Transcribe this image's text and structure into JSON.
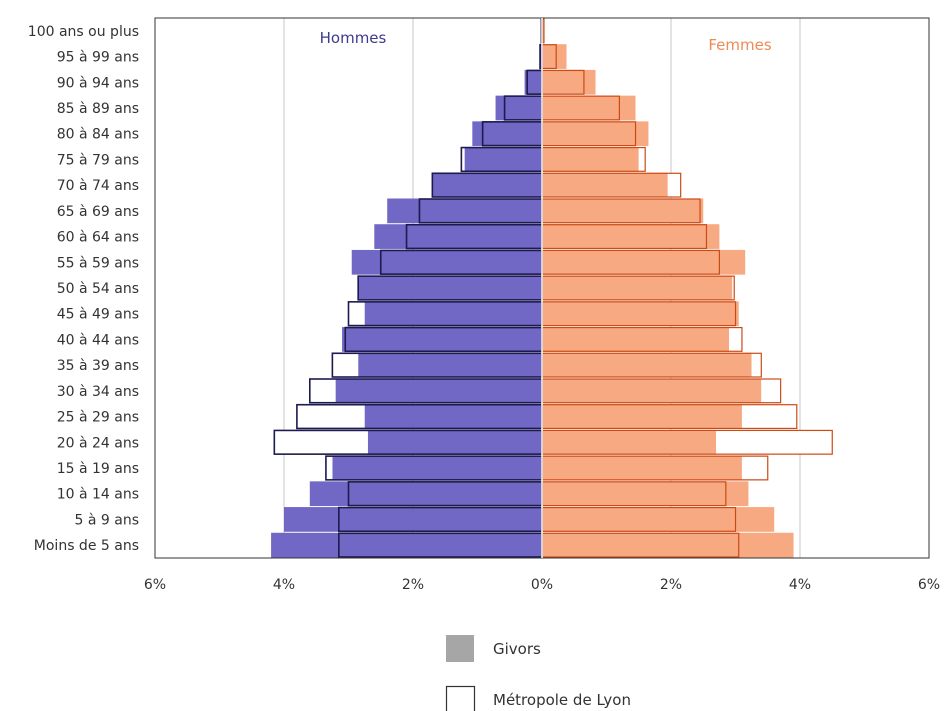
{
  "chart_data": {
    "type": "bar",
    "orientation": "population-pyramid",
    "categories": [
      "Moins de 5 ans",
      "5 à 9 ans",
      "10 à 14 ans",
      "15 à 19 ans",
      "20 à 24 ans",
      "25 à 29 ans",
      "30 à 34 ans",
      "35 à 39 ans",
      "40 à 44 ans",
      "45 à 49 ans",
      "50 à 54 ans",
      "55 à 59 ans",
      "60 à 64 ans",
      "65 à 69 ans",
      "70 à 74 ans",
      "75 à 79 ans",
      "80 à 84 ans",
      "85 à 89 ans",
      "90 à 94 ans",
      "95 à 99 ans",
      "100 ans ou plus"
    ],
    "side_labels": {
      "left": "Hommes",
      "right": "Femmes"
    },
    "xlim": [
      -6,
      6
    ],
    "x_ticks": [
      -6,
      -4,
      -2,
      0,
      2,
      4,
      6
    ],
    "x_tick_labels": [
      "6%",
      "4%",
      "2%",
      "0%",
      "2%",
      "4%",
      "6%"
    ],
    "grid": true,
    "legend_position": "bottom",
    "series": [
      {
        "name": "Givors",
        "style": "filled",
        "hommes": [
          4.2,
          4.0,
          3.6,
          3.25,
          2.7,
          2.75,
          3.2,
          2.85,
          3.1,
          2.75,
          2.85,
          2.95,
          2.6,
          2.4,
          1.7,
          1.2,
          1.08,
          0.72,
          0.27,
          0.04,
          0.01
        ],
        "femmes": [
          3.9,
          3.6,
          3.2,
          3.1,
          2.7,
          3.1,
          3.4,
          3.25,
          2.9,
          3.05,
          2.95,
          3.15,
          2.75,
          2.5,
          1.95,
          1.5,
          1.65,
          1.45,
          0.83,
          0.38,
          0.04
        ]
      },
      {
        "name": "Métropole de Lyon",
        "style": "outline",
        "hommes": [
          3.15,
          3.15,
          3.0,
          3.35,
          4.15,
          3.8,
          3.6,
          3.25,
          3.05,
          3.0,
          2.85,
          2.5,
          2.1,
          1.9,
          1.7,
          1.25,
          0.92,
          0.58,
          0.23,
          0.03,
          0.01
        ],
        "femmes": [
          3.05,
          3.0,
          2.85,
          3.5,
          4.5,
          3.95,
          3.7,
          3.4,
          3.1,
          3.0,
          2.98,
          2.75,
          2.55,
          2.45,
          2.15,
          1.6,
          1.45,
          1.2,
          0.65,
          0.22,
          0.03
        ]
      }
    ]
  },
  "colors": {
    "hommes_fill": "#7068c4",
    "hommes_outline": "#1d1a4f",
    "femmes_fill": "#f7a982",
    "femmes_outline": "#cc4a14",
    "hommes_label": "#3d3a8f",
    "femmes_label": "#f08a55",
    "legend_fill": "#a6a6a6",
    "grid": "#d0d0d0"
  }
}
